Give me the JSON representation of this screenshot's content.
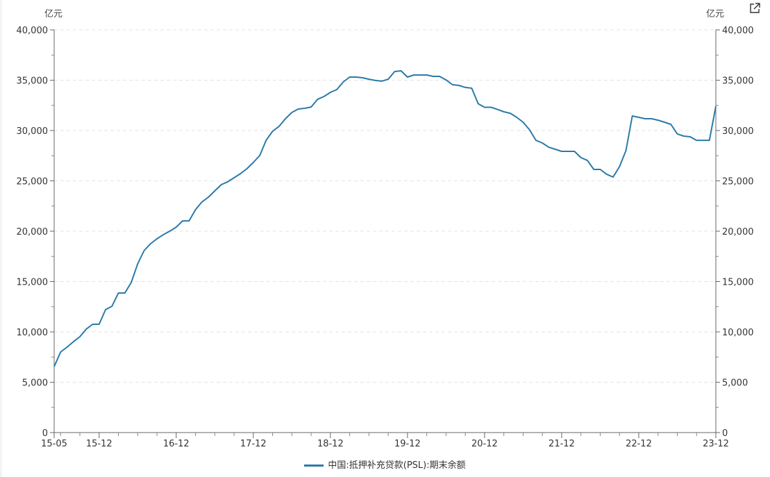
{
  "chart_data": {
    "type": "line",
    "title": "",
    "y_unit_left": "亿元",
    "y_unit_right": "亿元",
    "ylim": [
      0,
      40000
    ],
    "y_ticks": [
      0,
      5000,
      10000,
      15000,
      20000,
      25000,
      30000,
      35000,
      40000
    ],
    "y_tick_labels": [
      "0",
      "5,000",
      "10,000",
      "15,000",
      "20,000",
      "25,000",
      "30,000",
      "35,000",
      "40,000"
    ],
    "x_tick_labels": [
      "15-05",
      "15-12",
      "16-12",
      "17-12",
      "18-12",
      "19-12",
      "20-12",
      "21-12",
      "22-12",
      "23-12"
    ],
    "grid": true,
    "legend_position": "bottom",
    "x": [
      "15-05",
      "15-06",
      "15-07",
      "15-08",
      "15-09",
      "15-10",
      "15-11",
      "15-12",
      "16-01",
      "16-02",
      "16-03",
      "16-04",
      "16-05",
      "16-06",
      "16-07",
      "16-08",
      "16-09",
      "16-10",
      "16-11",
      "16-12",
      "17-01",
      "17-02",
      "17-03",
      "17-04",
      "17-05",
      "17-06",
      "17-07",
      "17-08",
      "17-09",
      "17-10",
      "17-11",
      "17-12",
      "18-01",
      "18-02",
      "18-03",
      "18-04",
      "18-05",
      "18-06",
      "18-07",
      "18-08",
      "18-09",
      "18-10",
      "18-11",
      "18-12",
      "19-01",
      "19-02",
      "19-03",
      "19-04",
      "19-05",
      "19-06",
      "19-07",
      "19-08",
      "19-09",
      "19-10",
      "19-11",
      "19-12",
      "20-01",
      "20-02",
      "20-03",
      "20-04",
      "20-05",
      "20-06",
      "20-07",
      "20-08",
      "20-09",
      "20-10",
      "20-11",
      "20-12",
      "21-01",
      "21-02",
      "21-03",
      "21-04",
      "21-05",
      "21-06",
      "21-07",
      "21-08",
      "21-09",
      "21-10",
      "21-11",
      "21-12",
      "22-01",
      "22-02",
      "22-03",
      "22-04",
      "22-05",
      "22-06",
      "22-07",
      "22-08",
      "22-09",
      "22-10",
      "22-11",
      "22-12",
      "23-01",
      "23-02",
      "23-03",
      "23-04",
      "23-05",
      "23-06",
      "23-07",
      "23-08",
      "23-09",
      "23-10",
      "23-11",
      "23-12"
    ],
    "series": [
      {
        "name": "中国:抵押补充贷款(PSL):期末余额",
        "color": "#2a7aa8",
        "values": [
          6550,
          8000,
          8480,
          9030,
          9520,
          10280,
          10760,
          10760,
          12210,
          12550,
          13860,
          13860,
          14900,
          16760,
          18070,
          18760,
          19240,
          19660,
          20000,
          20410,
          21030,
          21030,
          22140,
          22900,
          23380,
          24000,
          24620,
          24900,
          25310,
          25720,
          26210,
          26830,
          27520,
          29030,
          29930,
          30410,
          31170,
          31790,
          32140,
          32210,
          32340,
          33100,
          33380,
          33790,
          34070,
          34830,
          35310,
          35310,
          35240,
          35100,
          34970,
          34900,
          35100,
          35860,
          35930,
          35310,
          35520,
          35520,
          35520,
          35380,
          35380,
          35030,
          34550,
          34480,
          34280,
          34210,
          32660,
          32310,
          32310,
          32100,
          31860,
          31720,
          31310,
          30830,
          30070,
          29030,
          28760,
          28340,
          28140,
          27930,
          27930,
          27930,
          27310,
          27030,
          26140,
          26140,
          25660,
          25380,
          26410,
          28000,
          31450,
          31310,
          31170,
          31170,
          31030,
          30830,
          30620,
          29660,
          29450,
          29380,
          29030,
          29030,
          29030,
          32410
        ]
      }
    ]
  },
  "toolbar": {
    "expand_icon": "external-link-icon"
  }
}
